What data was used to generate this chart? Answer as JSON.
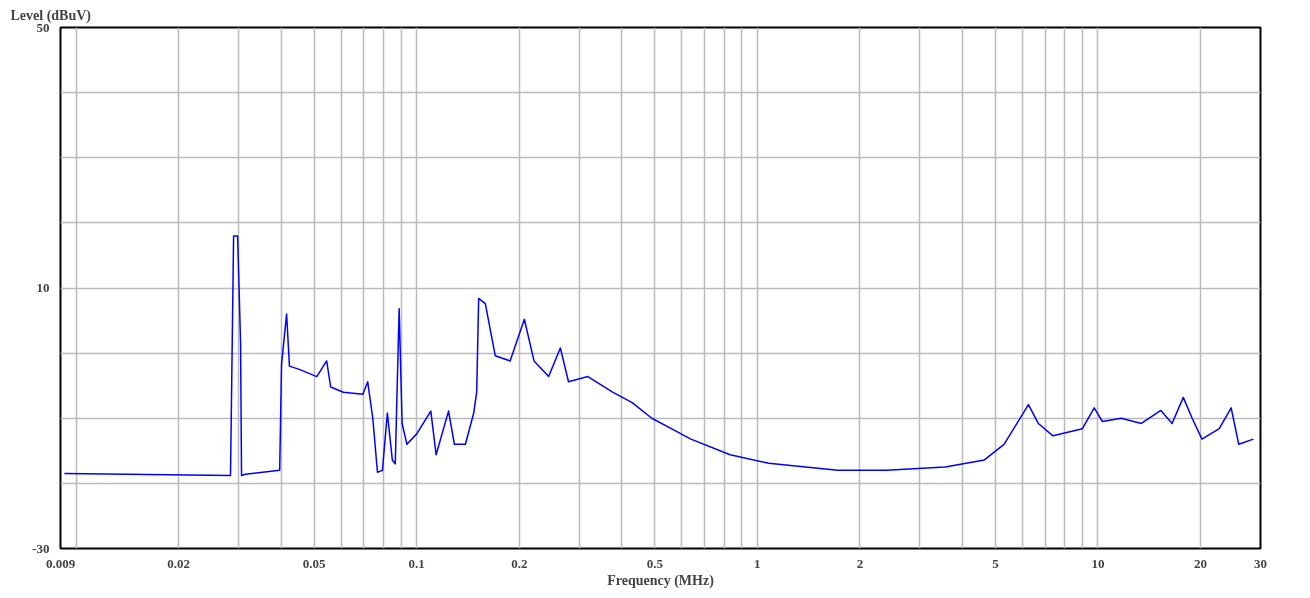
{
  "chart_data": {
    "type": "line",
    "xlabel": "Frequency (MHz)",
    "ylabel": "Level (dBuV)",
    "log": "x",
    "grid": true,
    "xlim": [
      0.009,
      30
    ],
    "ylim": [
      -30,
      50
    ],
    "xticks": [
      0.009,
      {
        "value": 0.01,
        "label": null
      },
      0.02,
      {
        "value": 0.03,
        "label": null
      },
      {
        "value": 0.04,
        "label": null
      },
      0.05,
      {
        "value": 0.06,
        "label": null
      },
      {
        "value": 0.07,
        "label": null
      },
      {
        "value": 0.08,
        "label": null
      },
      {
        "value": 0.09,
        "label": null
      },
      0.1,
      0.2,
      {
        "value": 0.3,
        "label": null
      },
      {
        "value": 0.4,
        "label": null
      },
      0.5,
      {
        "value": 0.6,
        "label": null
      },
      {
        "value": 0.7,
        "label": null
      },
      {
        "value": 0.8,
        "label": null
      },
      {
        "value": 0.9,
        "label": null
      },
      1,
      2,
      {
        "value": 3,
        "label": null
      },
      {
        "value": 4,
        "label": null
      },
      5,
      {
        "value": 6,
        "label": null
      },
      {
        "value": 7,
        "label": null
      },
      {
        "value": 8,
        "label": null
      },
      {
        "value": 9,
        "label": null
      },
      10,
      20,
      30
    ],
    "yticks": [
      -30,
      {
        "value": -20,
        "label": null
      },
      {
        "value": -10,
        "label": null
      },
      {
        "value": 0,
        "label": null
      },
      10,
      {
        "value": 20,
        "label": null
      },
      {
        "value": 30,
        "label": null
      },
      {
        "value": 40,
        "label": null
      },
      50
    ],
    "series": [
      {
        "color": "#0000ff",
        "x": [
          0.00924,
          0.0284,
          0.029,
          0.0298,
          0.0304,
          0.0306,
          0.0314,
          0.0396,
          0.0401,
          0.0415,
          0.0423,
          0.0452,
          0.0509,
          0.0544,
          0.0559,
          0.0609,
          0.0695,
          0.0718,
          0.0743,
          0.0767,
          0.0793,
          0.082,
          0.0848,
          0.0865,
          0.0888,
          0.0906,
          0.0936,
          0.1,
          0.11,
          0.114,
          0.124,
          0.129,
          0.139,
          0.147,
          0.15,
          0.152,
          0.159,
          0.17,
          0.188,
          0.207,
          0.221,
          0.244,
          0.264,
          0.279,
          0.318,
          0.376,
          0.429,
          0.49,
          0.559,
          0.638,
          0.832,
          1.08,
          1.72,
          2.39,
          3.56,
          4.64,
          5.3,
          6.25,
          6.68,
          7.38,
          9.0,
          9.75,
          10.3,
          11.7,
          13.4,
          15.3,
          16.5,
          17.8,
          18.9,
          20.2,
          22.7,
          24.6,
          25.9,
          28.6
        ],
        "values": [
          -18.5,
          -18.8,
          18,
          18,
          1.6,
          -18.8,
          -18.6,
          -18,
          -1.7,
          6,
          -2,
          -2.5,
          -3.6,
          -1.2,
          -5.2,
          -6,
          -6.3,
          -4.4,
          -10,
          -18.3,
          -18,
          -9.2,
          -16.4,
          -17,
          6.8,
          -10.8,
          -14,
          -12.4,
          -8.9,
          -15.6,
          -8.9,
          -14,
          -14,
          -9.2,
          -6,
          8.4,
          7.6,
          -0.4,
          -1.2,
          5.2,
          -1.2,
          -3.6,
          0.8,
          -4.4,
          -3.6,
          -6,
          -7.6,
          -10,
          -11.6,
          -13.2,
          -15.6,
          -16.9,
          -18,
          -18,
          -17.5,
          -16.4,
          -14,
          -7.9,
          -10.8,
          -12.7,
          -11.6,
          -8.4,
          -10.5,
          -10,
          -10.8,
          -8.8,
          -10.8,
          -6.8,
          -10,
          -13.2,
          -11.6,
          -8.4,
          -14,
          -13.2
        ]
      }
    ]
  }
}
